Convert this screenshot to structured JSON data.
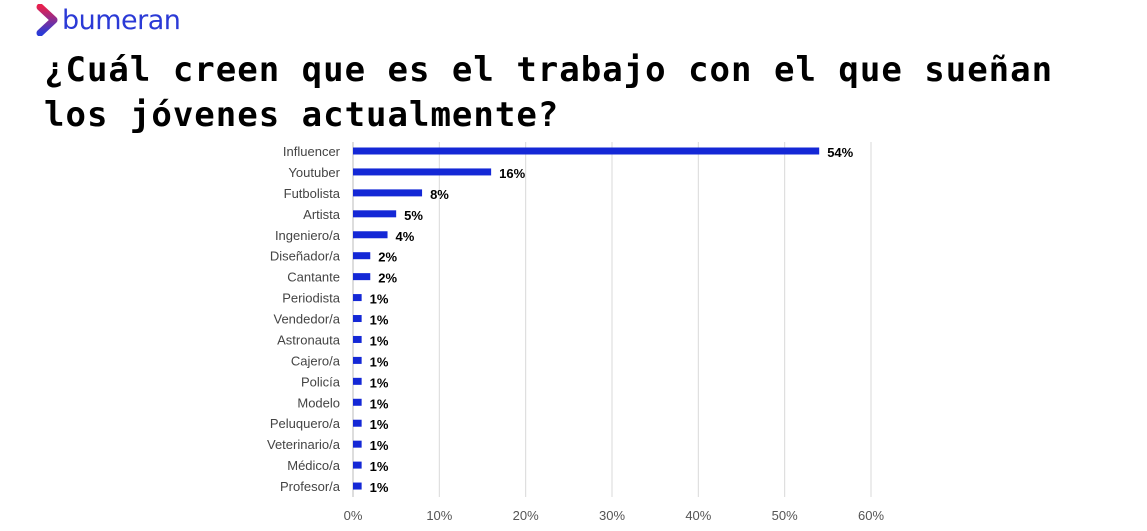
{
  "logo": {
    "text": "bumeran"
  },
  "chart_data": {
    "type": "bar",
    "orientation": "horizontal",
    "title": "¿Cuál creen que es el trabajo con el que sueñan los jóvenes actualmente?",
    "categories": [
      "Influencer",
      "Youtuber",
      "Futbolista",
      "Artista",
      "Ingeniero/a",
      "Diseñador/a",
      "Cantante",
      "Periodista",
      "Vendedor/a",
      "Astronauta",
      "Cajero/a",
      "Policía",
      "Modelo",
      "Peluquero/a",
      "Veterinario/a",
      "Médico/a",
      "Profesor/a"
    ],
    "values": [
      54,
      16,
      8,
      5,
      4,
      2,
      2,
      1,
      1,
      1,
      1,
      1,
      1,
      1,
      1,
      1,
      1
    ],
    "data_labels": [
      "54%",
      "16%",
      "8%",
      "5%",
      "4%",
      "2%",
      "2%",
      "1%",
      "1%",
      "1%",
      "1%",
      "1%",
      "1%",
      "1%",
      "1%",
      "1%",
      "1%"
    ],
    "xlim": [
      0,
      60
    ],
    "xticks": [
      "0%",
      "10%",
      "20%",
      "30%",
      "40%",
      "50%",
      "60%"
    ],
    "grid": true,
    "bar_color": "#1428d6"
  }
}
